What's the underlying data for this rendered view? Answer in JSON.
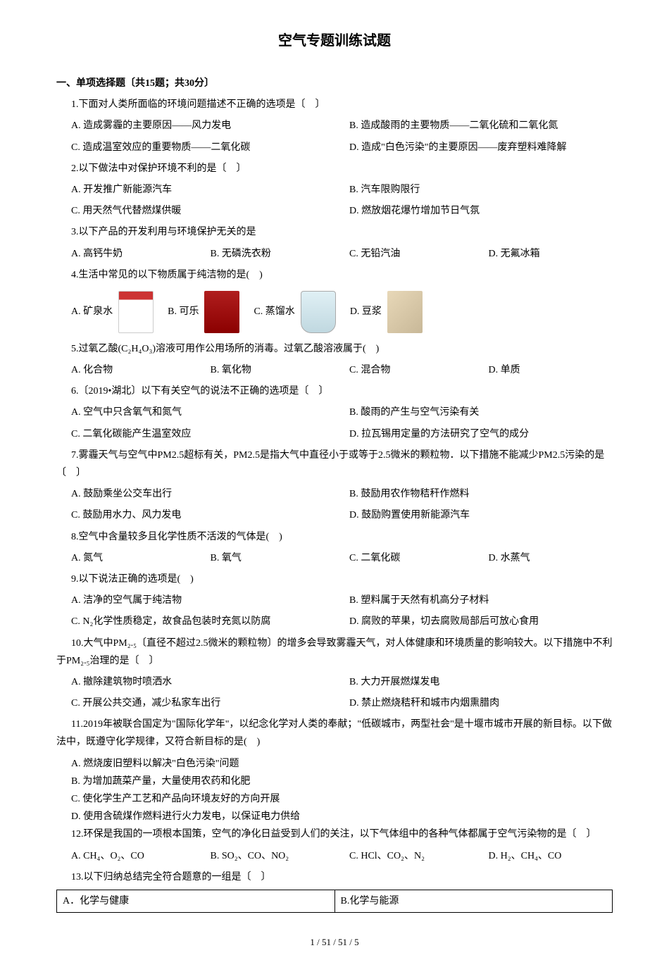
{
  "title": "空气专题训练试题",
  "section1": {
    "header": "一、单项选择题〔共15题；共30分〕"
  },
  "q1": {
    "text": "1.下面对人类所面临的环境问题描述不正确的选项是〔　〕",
    "a": "A. 造成雾霾的主要原因——风力发电",
    "b": "B. 造成酸雨的主要物质——二氧化硫和二氧化氮",
    "c": "C. 造成温室效应的重要物质——二氧化碳",
    "d": "D. 造成\"白色污染\"的主要原因——废弃塑料难降解"
  },
  "q2": {
    "text": "2.以下做法中对保护环境不利的是〔　〕",
    "a": "A. 开发推广新能源汽车",
    "b": "B. 汽车限购限行",
    "c": "C. 用天然气代替燃煤供暖",
    "d": "D. 燃放烟花爆竹增加节日气氛"
  },
  "q3": {
    "text": "3.以下产品的开发利用与环境保护无关的是",
    "a": "A. 高钙牛奶",
    "b": "B. 无磷洗衣粉",
    "c": "C. 无铅汽油",
    "d": "D. 无氟冰箱"
  },
  "q4": {
    "text": "4.生活中常见的以下物质属于纯洁物的是(　)",
    "a": "A. 矿泉水",
    "b": "B. 可乐",
    "c": "C. 蒸馏水",
    "d": "D. 豆浆"
  },
  "q5": {
    "text": "5.过氧乙酸(C₂H₄O₃)溶液可用作公用场所的消毒。过氧乙酸溶液属于(　)",
    "a": "A. 化合物",
    "b": "B. 氧化物",
    "c": "C. 混合物",
    "d": "D. 单质"
  },
  "q6": {
    "text": "6.〔2019•湖北〕以下有关空气的说法不正确的选项是〔　〕",
    "a": "A. 空气中只含氧气和氮气",
    "b": "B. 酸雨的产生与空气污染有关",
    "c": "C. 二氧化碳能产生温室效应",
    "d": "D. 拉瓦锡用定量的方法研究了空气的成分"
  },
  "q7": {
    "text": "7.雾霾天气与空气中PM2.5超标有关，PM2.5是指大气中直径小于或等于2.5微米的颗粒物．以下措施不能减少PM2.5污染的是〔　〕",
    "a": "A. 鼓励乘坐公交车出行",
    "b": "B. 鼓励用农作物秸秆作燃料",
    "c": "C. 鼓励用水力、风力发电",
    "d": "D. 鼓励购置使用新能源汽车"
  },
  "q8": {
    "text": "8.空气中含量较多且化学性质不活泼的气体是(　)",
    "a": "A. 氮气",
    "b": "B. 氧气",
    "c": "C. 二氧化碳",
    "d": "D. 水蒸气"
  },
  "q9": {
    "text": "9.以下说法正确的选项是(　)",
    "a": "A. 洁净的空气属于纯洁物",
    "b": "B. 塑料属于天然有机高分子材料",
    "c": "C. N₂化学性质稳定，故食品包装时充氮以防腐",
    "d": "D. 腐败的苹果，切去腐败局部后可放心食用"
  },
  "q10": {
    "text": "10.大气中PM₂.₅〔直径不超过2.5微米的颗粒物〕的增多会导致雾霾天气，对人体健康和环境质量的影响较大。以下措施中不利于PM₂.₅治理的是〔　〕",
    "a": "A. 撤除建筑物时喷洒水",
    "b": "B. 大力开展燃煤发电",
    "c": "C. 开展公共交通，减少私家车出行",
    "d": "D. 禁止燃烧秸秆和城市内烟熏腊肉"
  },
  "q11": {
    "text": "11.2019年被联合国定为\"国际化学年\"，以纪念化学对人类的奉献；\"低碳城市，两型社会\"是十堰市城市开展的新目标。以下做法中，既遵守化学规律，又符合新目标的是(　)",
    "a": "A. 燃烧废旧塑料以解决\"白色污染\"问题",
    "b": "B. 为增加蔬菜产量，大量使用农药和化肥",
    "c": "C. 使化学生产工艺和产品向环境友好的方向开展",
    "d": "D. 使用含硫煤作燃料进行火力发电，以保证电力供给"
  },
  "q12": {
    "text": "12.环保是我国的一项根本国策，空气的净化日益受到人们的关注，以下气体组中的各种气体都属于空气污染物的是〔　〕",
    "a": "A. CH₄、O₂、CO",
    "b": "B. SO₂、CO、NO₂",
    "c": "C. HCl、CO₂、N₂",
    "d": "D. H₂、CH₄、CO"
  },
  "q13": {
    "text": "13.以下归纳总结完全符合题意的一组是〔　〕",
    "cellA": "A．化学与健康",
    "cellB": "B.化学与能源"
  },
  "footer": "1 / 51 / 51 / 5"
}
